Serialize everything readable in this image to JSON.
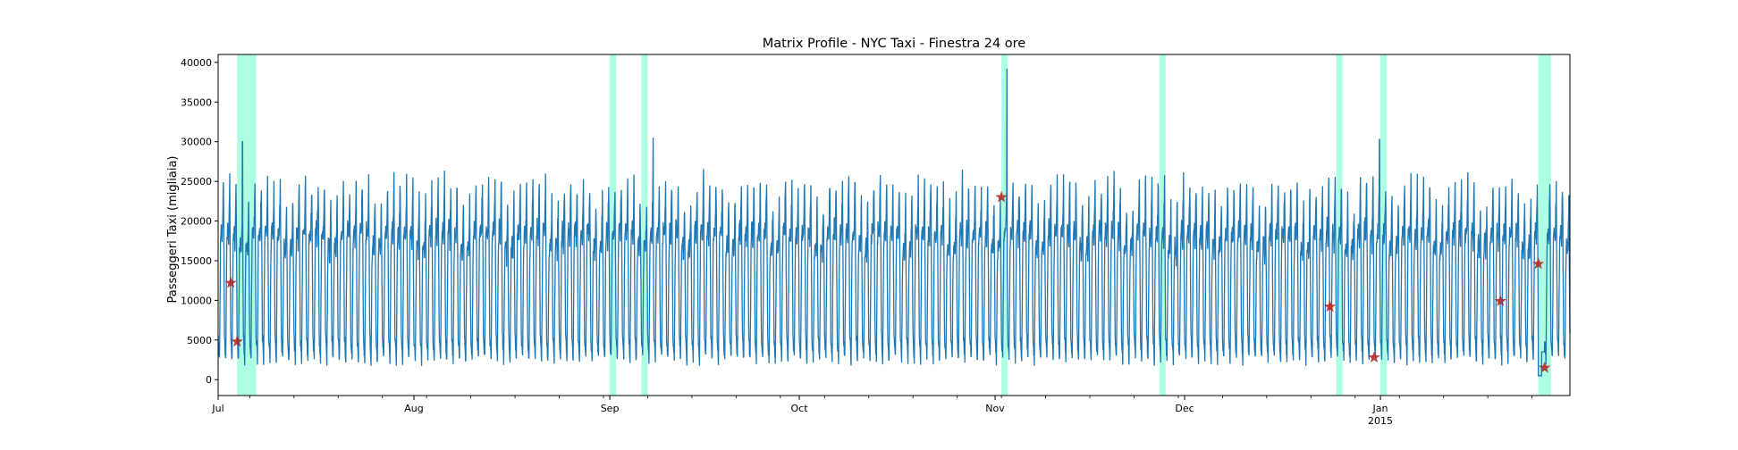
{
  "chart_data": {
    "type": "line",
    "title": "Matrix Profile - NYC Taxi - Finestra 24 ore",
    "xlabel": "",
    "ylabel": "Passeggeri Taxi (migliaia)",
    "x_range": [
      "2014-07-01",
      "2015-01-31"
    ],
    "ylim": [
      -2000,
      41000
    ],
    "yticks": [
      0,
      5000,
      10000,
      15000,
      20000,
      25000,
      30000,
      35000,
      40000
    ],
    "ytick_labels": [
      "0",
      "5000",
      "10000",
      "15000",
      "20000",
      "25000",
      "30000",
      "35000",
      "40000"
    ],
    "xticks": [
      {
        "date": "2014-07-01",
        "label": "Jul",
        "sublabel": ""
      },
      {
        "date": "2014-08-01",
        "label": "Aug",
        "sublabel": ""
      },
      {
        "date": "2014-09-01",
        "label": "Sep",
        "sublabel": ""
      },
      {
        "date": "2014-10-01",
        "label": "Oct",
        "sublabel": ""
      },
      {
        "date": "2014-11-01",
        "label": "Nov",
        "sublabel": ""
      },
      {
        "date": "2014-12-01",
        "label": "Dec",
        "sublabel": ""
      },
      {
        "date": "2015-01-01",
        "label": "Jan",
        "sublabel": "2015"
      }
    ],
    "series": [
      {
        "color": "#1f77b4",
        "description": "half-hourly taxi passenger count, daily cycle between ~2500 (night) and ~26000 (day)",
        "typical_min": 2500,
        "typical_max": 26000,
        "peaks": [
          {
            "date": "2014-07-04",
            "value": 30000
          },
          {
            "date": "2014-09-07",
            "value": 30500
          },
          {
            "date": "2014-11-02",
            "value": 39200
          },
          {
            "date": "2014-12-31",
            "value": 30300
          },
          {
            "date": "2015-01-26",
            "value": 500
          }
        ]
      }
    ],
    "highlighted_regions": [
      {
        "start": "2014-07-04",
        "end": "2014-07-07",
        "color": "#7fffd4"
      },
      {
        "start": "2014-09-01",
        "end": "2014-09-02",
        "color": "#7fffd4"
      },
      {
        "start": "2014-09-06",
        "end": "2014-09-07",
        "color": "#7fffd4"
      },
      {
        "start": "2014-11-02",
        "end": "2014-11-03",
        "color": "#7fffd4"
      },
      {
        "start": "2014-11-27",
        "end": "2014-11-28",
        "color": "#7fffd4"
      },
      {
        "start": "2014-12-25",
        "end": "2014-12-26",
        "color": "#7fffd4"
      },
      {
        "start": "2015-01-01",
        "end": "2015-01-02",
        "color": "#7fffd4"
      },
      {
        "start": "2015-01-26",
        "end": "2015-01-28",
        "color": "#7fffd4"
      }
    ],
    "markers": [
      {
        "date": "2014-07-03",
        "value": 12200
      },
      {
        "date": "2014-07-04",
        "value": 4800
      },
      {
        "date": "2014-11-02",
        "value": 23000
      },
      {
        "date": "2014-12-24",
        "value": 9200
      },
      {
        "date": "2014-12-31",
        "value": 2800
      },
      {
        "date": "2015-01-20",
        "value": 9900
      },
      {
        "date": "2015-01-26",
        "value": 14600
      },
      {
        "date": "2015-01-27",
        "value": 1500
      }
    ],
    "marker_color": "#b22222",
    "grid": false,
    "legend": "none"
  }
}
